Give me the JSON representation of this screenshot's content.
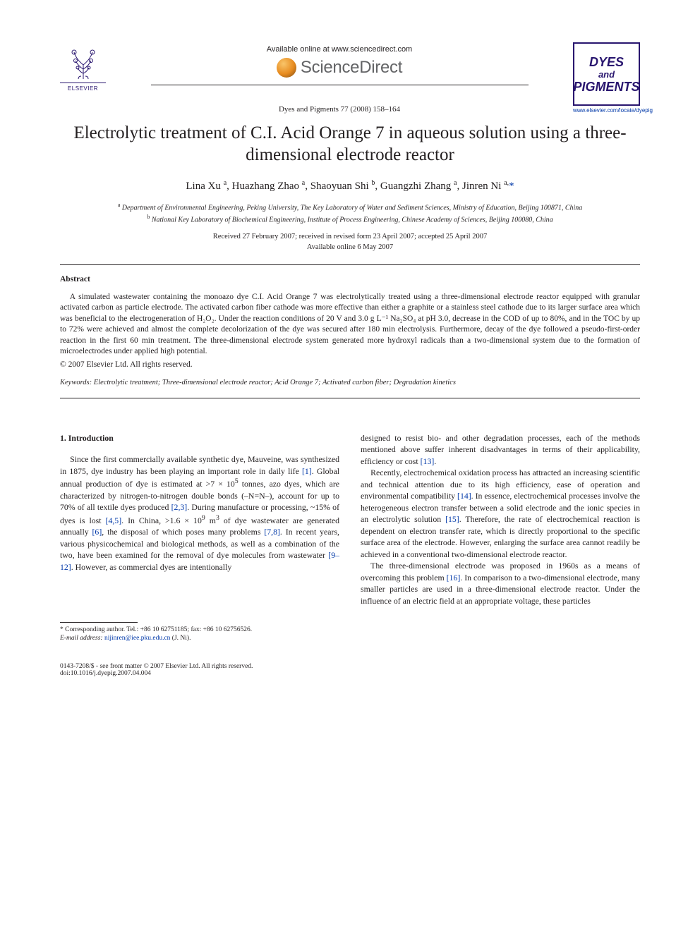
{
  "header": {
    "elsevier_label": "ELSEVIER",
    "available_online": "Available online at www.sciencedirect.com",
    "sciencedirect": "ScienceDirect",
    "journal_ref": "Dyes and Pigments 77 (2008) 158–164",
    "cover_line1": "DYES",
    "cover_line2": "and",
    "cover_line3": "PIGMENTS",
    "journal_url": "www.elsevier.com/locate/dyepig"
  },
  "title": "Electrolytic treatment of C.I. Acid Orange 7 in aqueous solution using a three-dimensional electrode reactor",
  "authors_html": "Lina Xu <sup>a</sup>, Huazhang Zhao <sup>a</sup>, Shaoyuan Shi <sup>b</sup>, Guangzhi Zhang <sup>a</sup>, Jinren Ni <sup>a,</sup><span class='corr'>*</span>",
  "affiliations": {
    "a": "Department of Environmental Engineering, Peking University, The Key Laboratory of Water and Sediment Sciences, Ministry of Education, Beijing 100871, China",
    "b": "National Key Laboratory of Biochemical Engineering, Institute of Process Engineering, Chinese Academy of Sciences, Beijing 100080, China"
  },
  "dates_line1": "Received 27 February 2007; received in revised form 23 April 2007; accepted 25 April 2007",
  "dates_line2": "Available online 6 May 2007",
  "abstract_heading": "Abstract",
  "abstract_body": "A simulated wastewater containing the monoazo dye C.I. Acid Orange 7 was electrolytically treated using a three-dimensional electrode reactor equipped with granular activated carbon as particle electrode. The activated carbon fiber cathode was more effective than either a graphite or a stainless steel cathode due to its larger surface area which was beneficial to the electrogeneration of H₂O₂. Under the reaction conditions of 20 V and 3.0 g L⁻¹ Na₂SO₄ at pH 3.0, decrease in the COD of up to 80%, and in the TOC by up to 72% were achieved and almost the complete decolorization of the dye was secured after 180 min electrolysis. Furthermore, decay of the dye followed a pseudo-first-order reaction in the first 60 min treatment. The three-dimensional electrode system generated more hydroxyl radicals than a two-dimensional system due to the formation of microelectrodes under applied high potential.",
  "copyright": "© 2007 Elsevier Ltd. All rights reserved.",
  "keywords_label": "Keywords:",
  "keywords_text": "Electrolytic treatment; Three-dimensional electrode reactor; Acid Orange 7; Activated carbon fiber; Degradation kinetics",
  "section1_heading": "1. Introduction",
  "col_left_html": "Since the first commercially available synthetic dye, Mauveine, was synthesized in 1875, dye industry has been playing an important role in daily life <span class='ref'>[1]</span>. Global annual production of dye is estimated at &gt;7 × 10<sup>5</sup> tonnes, azo dyes, which are characterized by nitrogen-to-nitrogen double bonds (–N=N–), account for up to 70% of all textile dyes produced <span class='ref'>[2,3]</span>. During manufacture or processing, ~15% of dyes is lost <span class='ref'>[4,5]</span>. In China, &gt;1.6 × 10<sup>9</sup> m<sup>3</sup> of dye wastewater are generated annually <span class='ref'>[6]</span>, the disposal of which poses many problems <span class='ref'>[7,8]</span>. In recent years, various physicochemical and biological methods, as well as a combination of the two, have been examined for the removal of dye molecules from wastewater <span class='ref'>[9–12]</span>. However, as commercial dyes are intentionally",
  "col_right_p1": "designed to resist bio- and other degradation processes, each of the methods mentioned above suffer inherent disadvantages in terms of their applicability, efficiency or cost <span class='ref'>[13]</span>.",
  "col_right_p2": "Recently, electrochemical oxidation process has attracted an increasing scientific and technical attention due to its high efficiency, ease of operation and environmental compatibility <span class='ref'>[14]</span>. In essence, electrochemical processes involve the heterogeneous electron transfer between a solid electrode and the ionic species in an electrolytic solution <span class='ref'>[15]</span>. Therefore, the rate of electrochemical reaction is dependent on electron transfer rate, which is directly proportional to the specific surface area of the electrode. However, enlarging the surface area cannot readily be achieved in a conventional two-dimensional electrode reactor.",
  "col_right_p3": "The three-dimensional electrode was proposed in 1960s as a means of overcoming this problem <span class='ref'>[16]</span>. In comparison to a two-dimensional electrode, many smaller particles are used in a three-dimensional electrode reactor. Under the influence of an electric field at an appropriate voltage, these particles",
  "footnote_corr": "* Corresponding author. Tel.: +86 10 62751185; fax: +86 10 62756526.",
  "footnote_email_label": "E-mail address:",
  "footnote_email": "nijinren@iee.pku.edu.cn",
  "footnote_email_suffix": "(J. Ni).",
  "footer_left_line1": "0143-7208/$ - see front matter © 2007 Elsevier Ltd. All rights reserved.",
  "footer_left_line2": "doi:10.1016/j.dyepig.2007.04.004"
}
